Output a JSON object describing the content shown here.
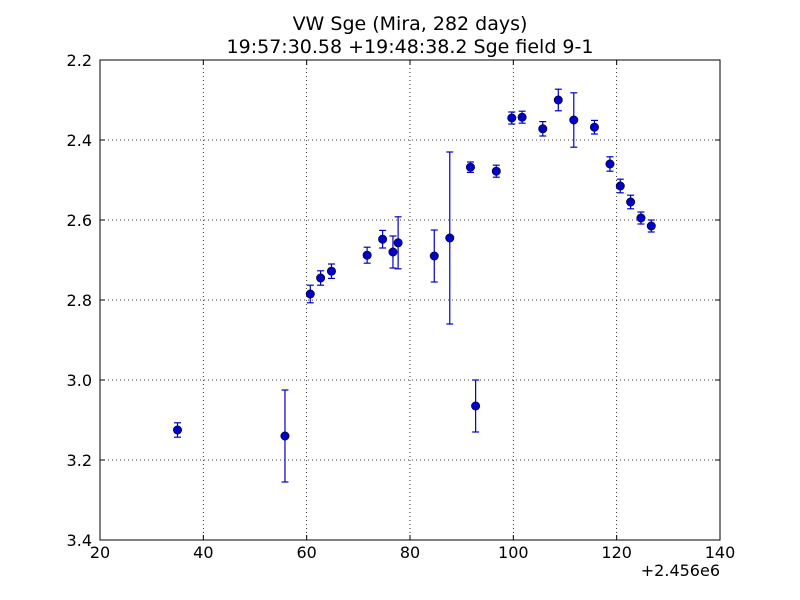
{
  "chart_data": {
    "type": "scatter",
    "title_lines": [
      "VW Sge (Mira, 282 days)",
      "19:57:30.58 +19:48:38.2 Sge field 9-1"
    ],
    "xlabel": "",
    "ylabel": "",
    "x_offset_label": "+2.456e6",
    "xlim": [
      20,
      140
    ],
    "ylim": [
      2.2,
      3.4
    ],
    "y_inverted": true,
    "x_ticks": [
      "20",
      "40",
      "60",
      "80",
      "100",
      "120",
      "140"
    ],
    "y_ticks": [
      "2.2",
      "2.4",
      "2.6",
      "2.8",
      "3.0",
      "3.2",
      "3.4"
    ],
    "grid": true,
    "marker_color": "#0000cc",
    "series": [
      {
        "points": [
          {
            "x": 35.0,
            "y": 3.125,
            "err": 0.018
          },
          {
            "x": 55.8,
            "y": 3.14,
            "err": 0.115
          },
          {
            "x": 60.7,
            "y": 2.785,
            "err": 0.022
          },
          {
            "x": 62.7,
            "y": 2.745,
            "err": 0.018
          },
          {
            "x": 64.8,
            "y": 2.728,
            "err": 0.018
          },
          {
            "x": 71.7,
            "y": 2.688,
            "err": 0.02
          },
          {
            "x": 74.7,
            "y": 2.648,
            "err": 0.022
          },
          {
            "x": 76.7,
            "y": 2.68,
            "err": 0.04
          },
          {
            "x": 77.7,
            "y": 2.657,
            "err": 0.065
          },
          {
            "x": 84.7,
            "y": 2.69,
            "err": 0.065
          },
          {
            "x": 87.7,
            "y": 2.645,
            "err": 0.215
          },
          {
            "x": 91.7,
            "y": 2.468,
            "err": 0.013
          },
          {
            "x": 92.7,
            "y": 3.065,
            "err": 0.065
          },
          {
            "x": 96.7,
            "y": 2.478,
            "err": 0.015
          },
          {
            "x": 99.7,
            "y": 2.345,
            "err": 0.015
          },
          {
            "x": 101.7,
            "y": 2.343,
            "err": 0.015
          },
          {
            "x": 105.7,
            "y": 2.372,
            "err": 0.018
          },
          {
            "x": 108.7,
            "y": 2.3,
            "err": 0.027
          },
          {
            "x": 111.7,
            "y": 2.35,
            "err": 0.068
          },
          {
            "x": 115.7,
            "y": 2.368,
            "err": 0.017
          },
          {
            "x": 118.7,
            "y": 2.46,
            "err": 0.018
          },
          {
            "x": 120.7,
            "y": 2.515,
            "err": 0.017
          },
          {
            "x": 122.7,
            "y": 2.555,
            "err": 0.017
          },
          {
            "x": 124.7,
            "y": 2.595,
            "err": 0.015
          },
          {
            "x": 126.7,
            "y": 2.615,
            "err": 0.015
          }
        ]
      }
    ]
  }
}
